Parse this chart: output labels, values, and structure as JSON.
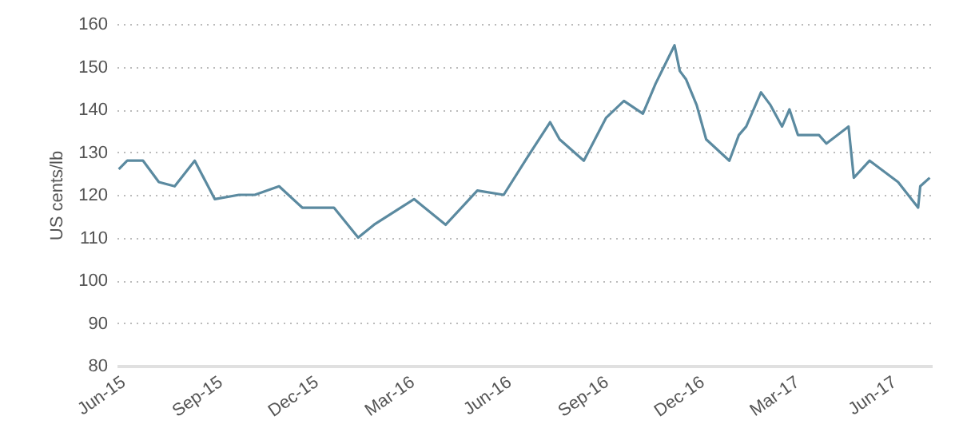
{
  "chart_data": {
    "type": "line",
    "ylabel": "US cents/lb",
    "x": [
      "2015-06-02",
      "2015-06-10",
      "2015-06-25",
      "2015-07-10",
      "2015-07-25",
      "2015-08-13",
      "2015-09-01",
      "2015-09-24",
      "2015-10-09",
      "2015-11-01",
      "2015-11-23",
      "2015-12-23",
      "2016-01-15",
      "2016-01-30",
      "2016-03-08",
      "2016-04-07",
      "2016-05-07",
      "2016-06-01",
      "2016-06-24",
      "2016-07-15",
      "2016-07-24",
      "2016-08-16",
      "2016-09-06",
      "2016-09-23",
      "2016-10-11",
      "2016-10-23",
      "2016-10-31",
      "2016-11-10",
      "2016-11-15",
      "2016-11-21",
      "2016-12-01",
      "2016-12-10",
      "2017-01-01",
      "2017-01-10",
      "2017-01-17",
      "2017-01-31",
      "2017-02-09",
      "2017-02-20",
      "2017-02-27",
      "2017-03-07",
      "2017-03-27",
      "2017-04-03",
      "2017-04-24",
      "2017-04-29",
      "2017-05-14",
      "2017-06-10",
      "2017-06-29",
      "2017-07-01",
      "2017-07-10"
    ],
    "series": [
      {
        "color": "#5b8aa0",
        "values": [
          126,
          128,
          128,
          123,
          122,
          128,
          119,
          120,
          120,
          122,
          117,
          117,
          110,
          113,
          119,
          113,
          121,
          120,
          129,
          137,
          133,
          128,
          138,
          142,
          139,
          146,
          150,
          155,
          149,
          147,
          141,
          133,
          128,
          134,
          136,
          144,
          141,
          136,
          140,
          134,
          134,
          132,
          136,
          124,
          128,
          123,
          117,
          122,
          124
        ]
      }
    ],
    "xlim": [
      "2015-05-31",
      "2017-07-12"
    ],
    "xticks": [
      {
        "value": "2015-06-01",
        "label": "Jun-15"
      },
      {
        "value": "2015-09-01",
        "label": "Sep-15"
      },
      {
        "value": "2015-12-01",
        "label": "Dec-15"
      },
      {
        "value": "2016-03-01",
        "label": "Mar-16"
      },
      {
        "value": "2016-06-01",
        "label": "Jun-16"
      },
      {
        "value": "2016-09-01",
        "label": "Sep-16"
      },
      {
        "value": "2016-12-01",
        "label": "Dec-16"
      },
      {
        "value": "2017-03-01",
        "label": "Mar-17"
      },
      {
        "value": "2017-06-01",
        "label": "Jun-17"
      }
    ],
    "ylim": [
      80,
      160
    ],
    "yticks": [
      80,
      90,
      100,
      110,
      120,
      130,
      140,
      150,
      160
    ],
    "grid": "y",
    "marker": "none",
    "line_style": "solid"
  }
}
